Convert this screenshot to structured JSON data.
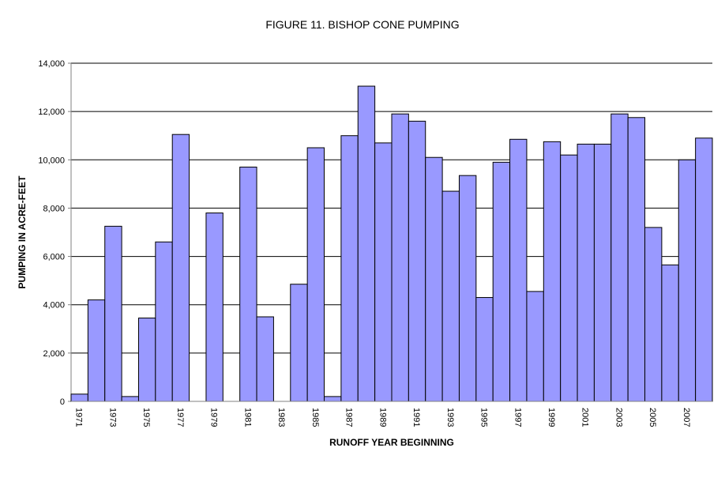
{
  "chart_data": {
    "type": "bar",
    "title": "FIGURE 11. BISHOP CONE PUMPING",
    "x_label": "RUNOFF YEAR BEGINNING",
    "y_label": "PUMPING IN ACRE-FEET",
    "categories": [
      "1971",
      null,
      "1973",
      null,
      "1975",
      null,
      "1977",
      null,
      "1979",
      null,
      "1981",
      null,
      "1983",
      null,
      "1985",
      null,
      "1987",
      null,
      "1989",
      null,
      "1991",
      null,
      "1993",
      null,
      "1995",
      null,
      "1997",
      null,
      "1999",
      null,
      "2001",
      null,
      "2003",
      null,
      "2005",
      null,
      "2007",
      null
    ],
    "values": [
      300,
      4200,
      7250,
      200,
      3450,
      6600,
      11050,
      0,
      7800,
      0,
      9700,
      3500,
      0,
      4850,
      10500,
      200,
      11000,
      13050,
      10700,
      11900,
      11600,
      10100,
      8700,
      9350,
      4300,
      9900,
      10850,
      4550,
      10750,
      10200,
      10650,
      10650,
      11900,
      11750,
      7200,
      5650,
      10000,
      10900
    ],
    "color": "#9999ff",
    "ylim": [
      0,
      14000
    ],
    "yticks": [
      0,
      {
        "value": 2000,
        "label": "2,000"
      },
      {
        "value": 4000,
        "label": "4,000"
      },
      {
        "value": 6000,
        "label": "6,000"
      },
      {
        "value": 8000,
        "label": "8,000"
      },
      {
        "value": 10000,
        "label": "10,000"
      },
      {
        "value": 12000,
        "label": "12,000"
      },
      {
        "value": 14000,
        "label": "14,000"
      }
    ],
    "grid": true
  }
}
